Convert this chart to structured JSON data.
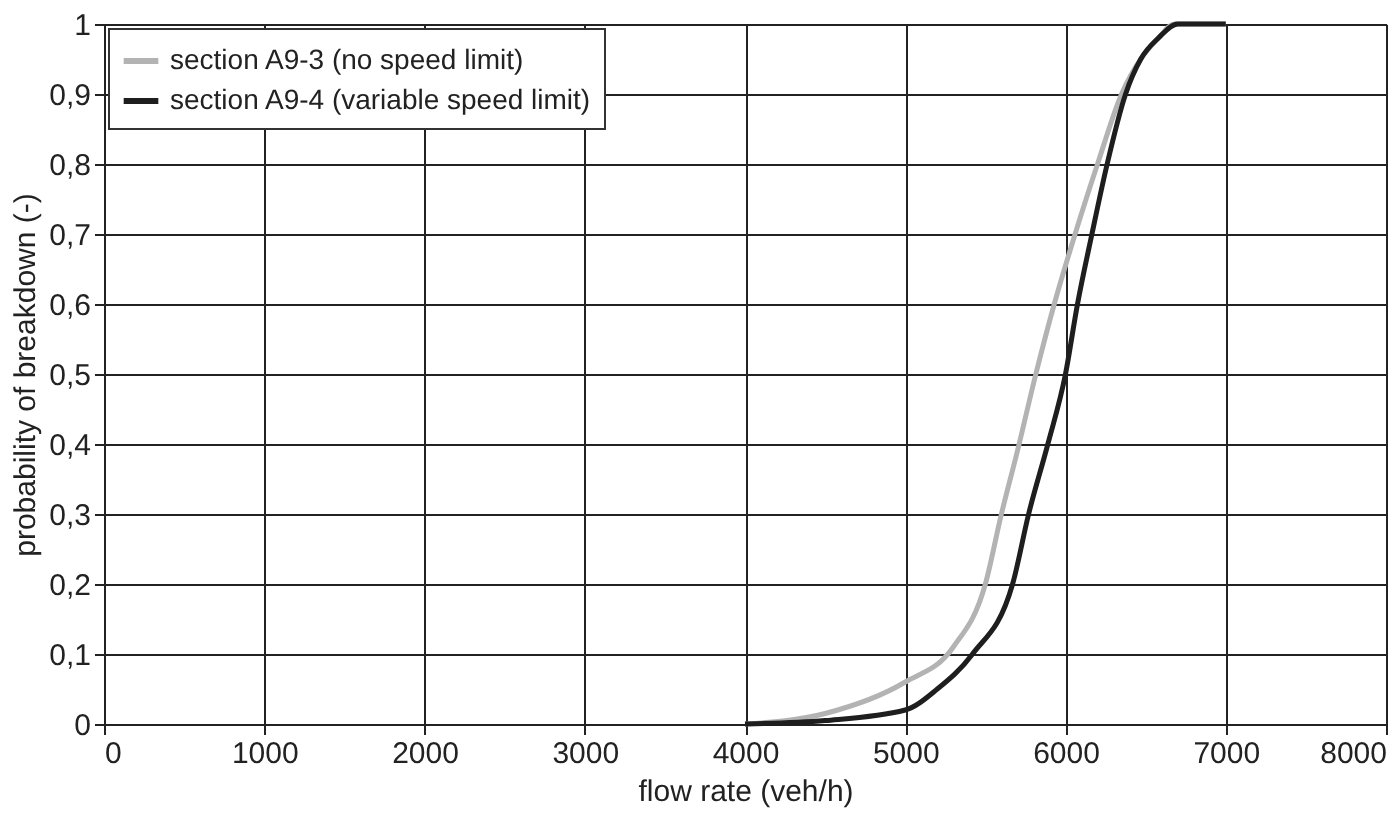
{
  "chart_data": {
    "type": "line",
    "xlabel": "flow rate (veh/h)",
    "ylabel": "probability of breakdown (-)",
    "xlim": [
      0,
      8000
    ],
    "xticks": [
      0,
      1000,
      2000,
      3000,
      4000,
      5000,
      6000,
      7000,
      8000
    ],
    "ylim": [
      0,
      1
    ],
    "yticks": [
      0,
      {
        "value": 0.1,
        "label": "0,1"
      },
      {
        "value": 0.2,
        "label": "0,2"
      },
      {
        "value": 0.3,
        "label": "0,3"
      },
      {
        "value": 0.4,
        "label": "0,4"
      },
      {
        "value": 0.5,
        "label": "0,5"
      },
      {
        "value": 0.6,
        "label": "0,6"
      },
      {
        "value": 0.7,
        "label": "0,7"
      },
      {
        "value": 0.8,
        "label": "0,8"
      },
      {
        "value": 0.9,
        "label": "0,9"
      },
      1
    ],
    "grid": true,
    "legend": "top left",
    "line_style": "solid",
    "marker": "none",
    "series": [
      {
        "name": "section A9-3 (no speed limit)",
        "color": "#b3b3b3",
        "x": [
          4000,
          4500,
          5000,
          5300,
          5500,
          5600,
          5700,
          5815,
          5930,
          6060,
          6200,
          6350,
          6470,
          6580,
          6680,
          7000
        ],
        "values": [
          0,
          0.015,
          0.06,
          0.11,
          0.2,
          0.3,
          0.39,
          0.5,
          0.6,
          0.7,
          0.8,
          0.9,
          0.95,
          0.98,
          1,
          1
        ]
      },
      {
        "name": "section A9-4 (variable speed limit)",
        "color": "#1e1e1e",
        "x": [
          4000,
          4500,
          5000,
          5200,
          5420,
          5670,
          5770,
          5890,
          6000,
          6075,
          6165,
          6260,
          6375,
          6470,
          6580,
          6700,
          7000
        ],
        "values": [
          0,
          0.005,
          0.02,
          0.05,
          0.1,
          0.2,
          0.3,
          0.4,
          0.5,
          0.6,
          0.7,
          0.8,
          0.9,
          0.95,
          0.98,
          1,
          1
        ]
      }
    ]
  }
}
